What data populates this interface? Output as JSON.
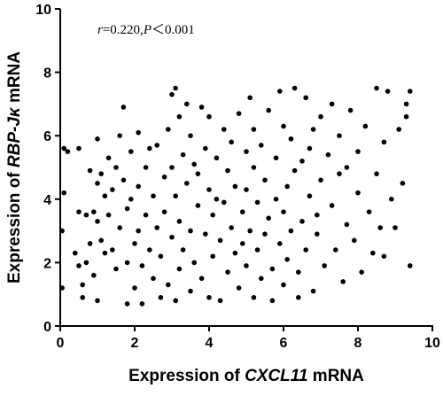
{
  "chart_data": {
    "type": "scatter",
    "annotation": [
      "r",
      "=0.220,",
      "P",
      "＜0.001"
    ],
    "x_label": [
      "Expression of ",
      "CXCL11",
      " mRNA"
    ],
    "y_label": [
      "Expression of ",
      "RBP-Jκ",
      "  mRNA"
    ],
    "color": "#000000",
    "xlim": [
      0,
      10
    ],
    "xticks": [
      0,
      2,
      4,
      6,
      8,
      10
    ],
    "ylim": [
      0,
      10
    ],
    "yticks": [
      0,
      2,
      4,
      6,
      8,
      10
    ],
    "x": [
      0.05,
      0.05,
      0.1,
      0.1,
      0.2,
      0.4,
      0.5,
      0.5,
      0.5,
      0.6,
      0.6,
      0.7,
      0.7,
      0.8,
      0.8,
      0.9,
      0.9,
      1.0,
      1.0,
      1.0,
      1.0,
      1.1,
      1.1,
      1.2,
      1.2,
      1.3,
      1.3,
      1.4,
      1.4,
      1.5,
      1.5,
      1.6,
      1.6,
      1.7,
      1.7,
      1.8,
      1.8,
      1.8,
      1.9,
      1.9,
      2.0,
      2.0,
      2.1,
      2.1,
      2.1,
      2.2,
      2.2,
      2.3,
      2.3,
      2.4,
      2.4,
      2.5,
      2.5,
      2.6,
      2.6,
      2.7,
      2.7,
      2.8,
      2.8,
      2.9,
      2.9,
      3.0,
      3.0,
      3.0,
      3.1,
      3.1,
      3.1,
      3.2,
      3.2,
      3.2,
      3.3,
      3.3,
      3.4,
      3.4,
      3.5,
      3.5,
      3.5,
      3.6,
      3.6,
      3.7,
      3.7,
      3.8,
      3.8,
      3.9,
      3.9,
      4.0,
      4.0,
      4.0,
      4.1,
      4.1,
      4.2,
      4.2,
      4.3,
      4.3,
      4.4,
      4.4,
      4.5,
      4.5,
      4.6,
      4.6,
      4.7,
      4.7,
      4.8,
      4.8,
      4.9,
      4.9,
      5.0,
      5.0,
      5.0,
      5.1,
      5.1,
      5.2,
      5.2,
      5.2,
      5.3,
      5.3,
      5.4,
      5.4,
      5.5,
      5.5,
      5.6,
      5.6,
      5.7,
      5.7,
      5.8,
      5.8,
      5.9,
      5.9,
      6.0,
      6.0,
      6.0,
      6.1,
      6.1,
      6.2,
      6.2,
      6.3,
      6.3,
      6.4,
      6.4,
      6.5,
      6.5,
      6.6,
      6.6,
      6.7,
      6.7,
      6.8,
      6.8,
      6.9,
      6.9,
      7.0,
      7.0,
      7.1,
      7.2,
      7.3,
      7.3,
      7.4,
      7.5,
      7.5,
      7.6,
      7.7,
      7.7,
      7.8,
      7.9,
      8.0,
      8.0,
      8.1,
      8.2,
      8.3,
      8.4,
      8.5,
      8.5,
      8.6,
      8.7,
      8.7,
      8.8,
      8.9,
      9.0,
      9.1,
      9.2,
      9.3,
      9.3,
      9.4,
      9.4
    ],
    "values": [
      1.2,
      3.0,
      5.6,
      4.2,
      5.5,
      2.3,
      5.6,
      3.6,
      1.9,
      1.3,
      0.9,
      2.0,
      3.5,
      4.9,
      2.6,
      1.6,
      3.6,
      5.9,
      4.5,
      3.3,
      0.8,
      4.8,
      2.7,
      2.3,
      4.1,
      5.3,
      3.5,
      2.4,
      4.3,
      5.0,
      1.8,
      3.1,
      6.0,
      6.9,
      4.6,
      0.7,
      2.0,
      3.7,
      5.5,
      4.0,
      2.6,
      1.2,
      6.1,
      4.4,
      3.0,
      0.7,
      1.9,
      5.0,
      3.5,
      5.6,
      2.4,
      4.1,
      1.5,
      5.7,
      3.1,
      0.9,
      2.2,
      4.7,
      3.6,
      6.2,
      1.3,
      7.3,
      5.0,
      2.8,
      7.5,
      4.1,
      0.8,
      6.6,
      3.3,
      1.8,
      5.4,
      2.4,
      7.0,
      4.5,
      6.0,
      1.1,
      3.0,
      5.1,
      2.0,
      4.8,
      3.8,
      6.9,
      1.5,
      5.6,
      2.9,
      4.3,
      0.9,
      6.6,
      3.5,
      2.2,
      4.0,
      5.3,
      0.8,
      2.7,
      3.9,
      6.2,
      1.7,
      4.9,
      3.1,
      5.8,
      2.3,
      4.4,
      1.2,
      6.7,
      3.6,
      2.6,
      5.5,
      1.9,
      4.3,
      7.2,
      3.0,
      0.9,
      5.0,
      6.2,
      2.4,
      3.9,
      1.5,
      5.7,
      4.6,
      2.9,
      6.8,
      3.4,
      0.8,
      1.8,
      5.3,
      4.0,
      7.4,
      2.6,
      3.6,
      6.3,
      1.3,
      4.4,
      2.1,
      5.9,
      3.0,
      7.5,
      4.9,
      1.7,
      0.9,
      5.2,
      3.3,
      7.2,
      2.4,
      5.6,
      4.1,
      6.2,
      1.1,
      3.5,
      2.9,
      6.6,
      4.6,
      1.9,
      5.4,
      3.8,
      7.0,
      2.4,
      4.8,
      6.0,
      1.4,
      3.2,
      5.0,
      6.8,
      2.7,
      4.2,
      5.5,
      1.7,
      6.3,
      3.6,
      2.3,
      4.8,
      7.5,
      3.1,
      5.8,
      2.2,
      7.4,
      4.0,
      3.1,
      6.2,
      4.5,
      7.0,
      6.6,
      1.9,
      7.4
    ]
  }
}
